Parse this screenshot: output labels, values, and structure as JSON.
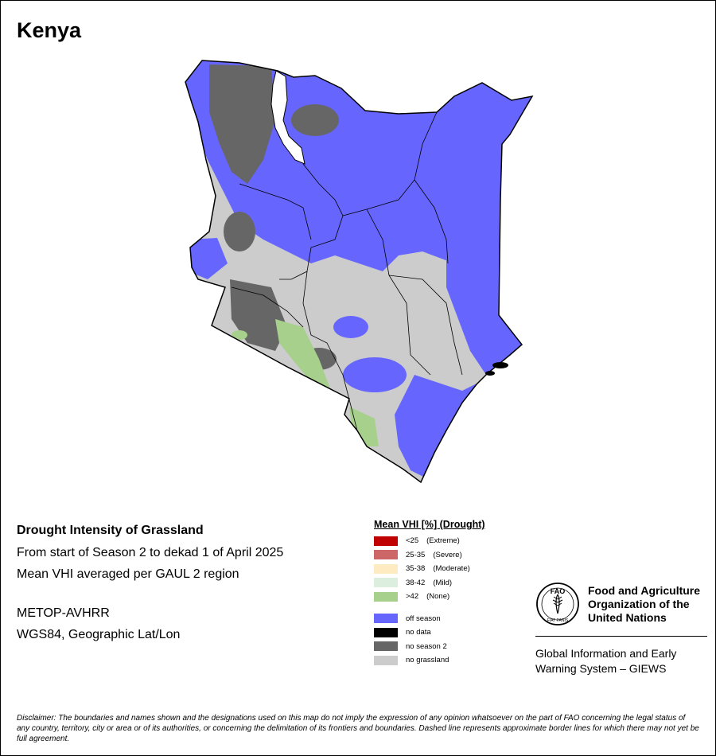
{
  "map": {
    "title": "Kenya",
    "country": "Kenya",
    "colors": {
      "off_season": "#6666ff",
      "no_season_2": "#666666",
      "no_grassland": "#cccccc",
      "none_drought": "#a8d08d",
      "mild_drought": "#dceedd"
    }
  },
  "info": {
    "heading": "Drought Intensity of Grassland",
    "period": "From start of Season 2 to dekad 1 of April 2025",
    "method": "Mean VHI averaged per GAUL 2 region",
    "sensor": "METOP-AVHRR",
    "projection": "WGS84, Geographic Lat/Lon"
  },
  "legend": {
    "title": "Mean VHI [%] (Drought)",
    "classes": [
      {
        "range": "<25",
        "condition": "(Extreme)",
        "color": "#c00000"
      },
      {
        "range": "25-35",
        "condition": "(Severe)",
        "color": "#cd6666"
      },
      {
        "range": "35-38",
        "condition": "(Moderate)",
        "color": "#ffebc2"
      },
      {
        "range": "38-42",
        "condition": "(Mild)",
        "color": "#dceedd"
      },
      {
        "range": ">42",
        "condition": "(None)",
        "color": "#a8d08d"
      }
    ],
    "other": [
      {
        "label": "off season",
        "color": "#6666ff"
      },
      {
        "label": "no data",
        "color": "#000000"
      },
      {
        "label": "no season 2",
        "color": "#666666"
      },
      {
        "label": "no grassland",
        "color": "#cccccc"
      }
    ]
  },
  "fao": {
    "logo_letters": "FAO",
    "logo_motto": "FIAT PANIS",
    "org_line1": "Food and Agriculture",
    "org_line2": "Organization of the",
    "org_line3": "United Nations",
    "giews_line1": "Global Information and Early",
    "giews_line2": "Warning System – GIEWS"
  },
  "disclaimer": {
    "label": "Disclaimer:",
    "text": "The boundaries and names shown and the designations used on this map do not imply the expression of any opinion whatsoever on the part of FAO concerning the legal status of any country, territory, city or area or of its authorities, or concerning the delimitation of its frontiers and boundaries. Dashed line represents approximate border lines for which there may not yet be full agreement."
  }
}
